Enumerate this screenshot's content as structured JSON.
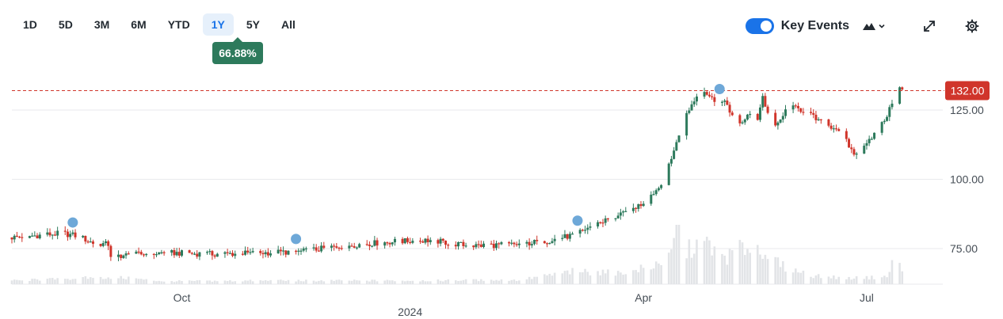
{
  "range_buttons": [
    "1D",
    "5D",
    "3M",
    "6M",
    "YTD",
    "1Y",
    "5Y",
    "All"
  ],
  "active_range": "1Y",
  "change_badge": "66.88%",
  "key_events": {
    "label": "Key Events",
    "enabled": true
  },
  "icons": {
    "chart_type": "mountain-icon",
    "dropdown": "chevron-down-icon",
    "expand": "expand-icon",
    "settings": "gear-icon"
  },
  "colors": {
    "up": "#2d7a5c",
    "down": "#d0352b",
    "accent": "#1a73e8",
    "price_line": "#d0352b",
    "volume": "#e2e4e7",
    "event_dot": "#6ea8d8"
  },
  "chart_data": {
    "type": "candlestick",
    "price_label": "132.00",
    "current_price": 132.0,
    "y_ticks": [
      "125.00",
      "100.00",
      "75.00"
    ],
    "y_tick_values": [
      125,
      100,
      75
    ],
    "ylim": [
      62,
      148
    ],
    "x_tick_labels": [
      "Oct",
      "Apr",
      "Jul"
    ],
    "x_tick_days": [
      67,
      249,
      337
    ],
    "year_label": "2024",
    "year_label_day": 157,
    "total_days": 367,
    "x_start": "2023-07-24",
    "key_event_days": [
      24,
      112,
      223,
      279
    ],
    "points": [
      [
        0,
        79
      ],
      [
        20,
        80.5
      ],
      [
        26,
        79.5
      ],
      [
        32,
        77
      ],
      [
        38,
        76.5
      ],
      [
        39,
        72.5
      ],
      [
        44,
        72.5
      ],
      [
        60,
        73.5
      ],
      [
        80,
        73
      ],
      [
        100,
        73.5
      ],
      [
        115,
        74
      ],
      [
        130,
        76
      ],
      [
        150,
        77.5
      ],
      [
        165,
        78
      ],
      [
        180,
        76
      ],
      [
        200,
        76.5
      ],
      [
        212,
        78
      ],
      [
        222,
        80
      ],
      [
        230,
        84
      ],
      [
        240,
        87
      ],
      [
        248,
        91
      ],
      [
        255,
        97
      ],
      [
        258,
        103
      ],
      [
        262,
        113
      ],
      [
        265,
        122
      ],
      [
        268,
        127
      ],
      [
        272,
        133
      ],
      [
        276,
        129
      ],
      [
        282,
        127
      ],
      [
        286,
        119
      ],
      [
        290,
        123
      ],
      [
        294,
        122
      ],
      [
        296,
        130
      ],
      [
        300,
        117
      ],
      [
        306,
        126
      ],
      [
        312,
        125
      ],
      [
        318,
        121
      ],
      [
        326,
        118
      ],
      [
        332,
        109
      ],
      [
        336,
        113
      ],
      [
        342,
        118
      ],
      [
        346,
        125
      ],
      [
        349,
        134
      ],
      [
        351,
        132
      ]
    ],
    "volume": [
      [
        0,
        0.06
      ],
      [
        40,
        0.12
      ],
      [
        60,
        0.05
      ],
      [
        100,
        0.06
      ],
      [
        150,
        0.06
      ],
      [
        200,
        0.07
      ],
      [
        222,
        0.22
      ],
      [
        240,
        0.18
      ],
      [
        252,
        0.3
      ],
      [
        260,
        0.48
      ],
      [
        262,
        1.0
      ],
      [
        266,
        0.55
      ],
      [
        272,
        0.75
      ],
      [
        282,
        0.45
      ],
      [
        290,
        0.65
      ],
      [
        296,
        0.6
      ],
      [
        304,
        0.3
      ],
      [
        315,
        0.15
      ],
      [
        330,
        0.1
      ],
      [
        345,
        0.12
      ],
      [
        348,
        0.46
      ],
      [
        351,
        0.22
      ]
    ]
  }
}
